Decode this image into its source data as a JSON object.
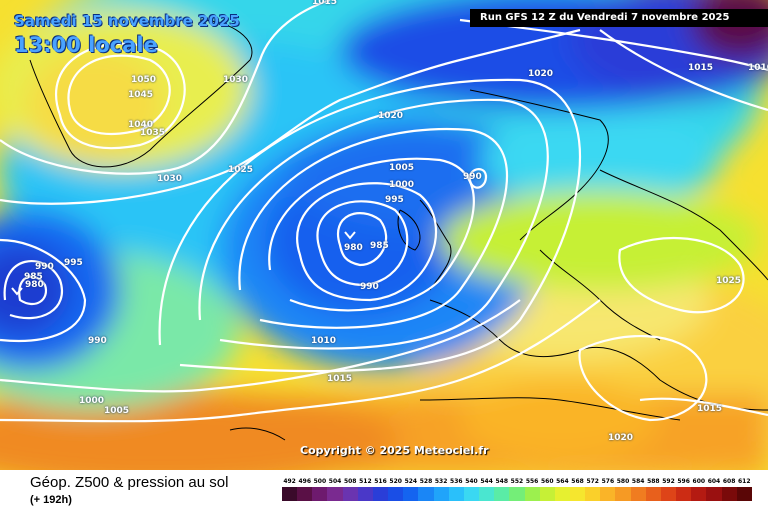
{
  "header": {
    "date": "Samedi 15 novembre 2025",
    "time": "13:00 locale",
    "run": "Run GFS 12 Z du Vendredi 7 novembre 2025"
  },
  "map": {
    "copyright": "Copyright © 2025 Meteociel.fr",
    "isobars": [
      {
        "label": "1015"
      },
      {
        "label": "1050"
      },
      {
        "label": "1045"
      },
      {
        "label": "1030"
      },
      {
        "label": "1040"
      },
      {
        "label": "1035"
      },
      {
        "label": "1030"
      },
      {
        "label": "1025"
      },
      {
        "label": "1020"
      },
      {
        "label": "1020"
      },
      {
        "label": "1015"
      },
      {
        "label": "1010"
      },
      {
        "label": "1005"
      },
      {
        "label": "1000"
      },
      {
        "label": "995"
      },
      {
        "label": "990"
      },
      {
        "label": "980"
      },
      {
        "label": "985"
      },
      {
        "label": "990"
      },
      {
        "label": "990"
      },
      {
        "label": "985"
      },
      {
        "label": "980"
      },
      {
        "label": "995"
      },
      {
        "label": "990"
      },
      {
        "label": "1000"
      },
      {
        "label": "1005"
      },
      {
        "label": "1010"
      },
      {
        "label": "1015"
      },
      {
        "label": "1025"
      },
      {
        "label": "1015"
      },
      {
        "label": "1020"
      }
    ]
  },
  "legend": {
    "title": "Géop. Z500 & pression au sol",
    "subtitle": "(+ 192h)",
    "scale": [
      "492",
      "496",
      "500",
      "504",
      "508",
      "512",
      "516",
      "520",
      "524",
      "528",
      "532",
      "536",
      "540",
      "544",
      "548",
      "552",
      "556",
      "560",
      "564",
      "568",
      "572",
      "576",
      "580",
      "584",
      "588",
      "592",
      "596",
      "600",
      "604",
      "608",
      "612"
    ],
    "colors": [
      "#3a0a2a",
      "#5a1046",
      "#6e1a6e",
      "#7a2a90",
      "#6a34b0",
      "#4a38c8",
      "#2a3ed8",
      "#1a4ee6",
      "#1464f0",
      "#1a86f6",
      "#20a4fa",
      "#2ac0fa",
      "#3ad8f2",
      "#4ae6d0",
      "#5aeca6",
      "#74ee78",
      "#9cf04e",
      "#c6f036",
      "#e6f030",
      "#f6e62e",
      "#fad02a",
      "#fab428",
      "#f69a24",
      "#f07c20",
      "#e8601c",
      "#de4418",
      "#cc2c14",
      "#b41a12",
      "#9a1010",
      "#7a0a0a",
      "#5a0606"
    ]
  }
}
